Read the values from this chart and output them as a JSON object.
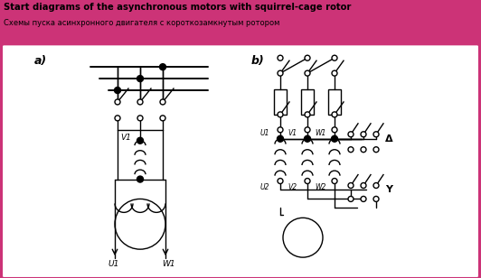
{
  "title_en": "Start diagrams of the asynchronous motors with squirrel-cage rotor",
  "title_ru": "Схемы пуска асинхронного двигателя с короткозамкнутым ротором",
  "bg_header": "#cc3377",
  "label_a": "a)",
  "label_b": "b)",
  "fig_width": 5.32,
  "fig_height": 3.08
}
